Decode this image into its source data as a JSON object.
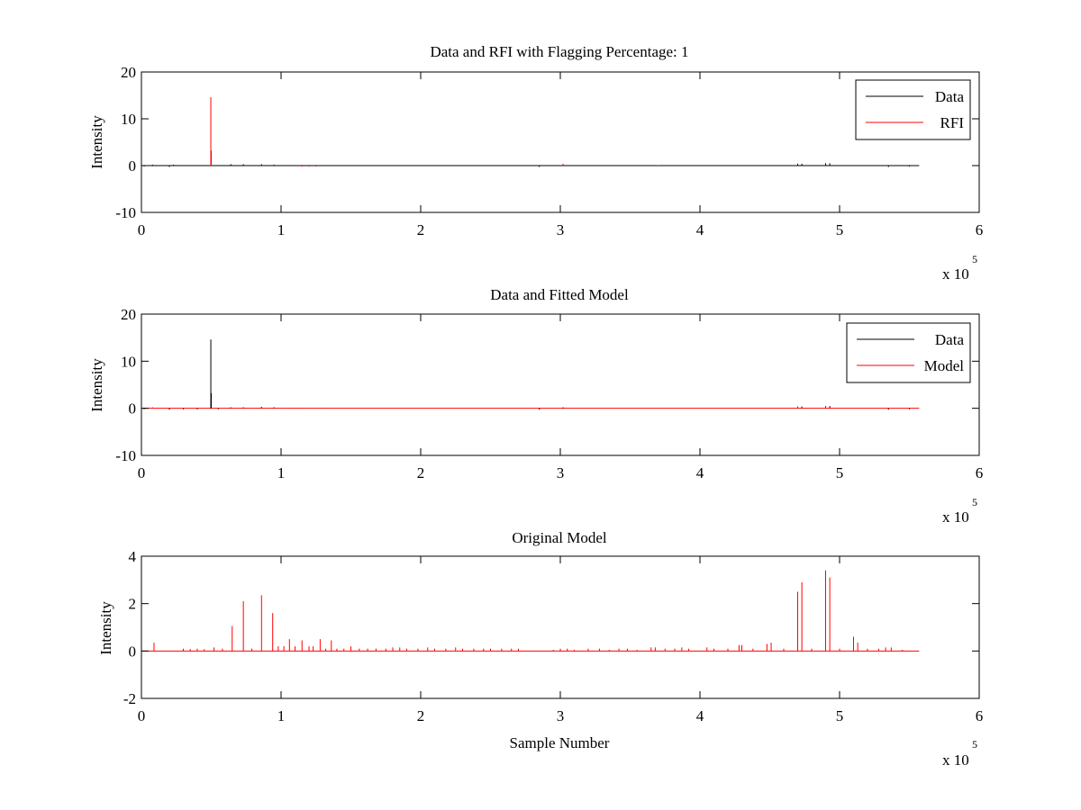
{
  "figure": {
    "background": "#ffffff",
    "axes_color": "#000000"
  },
  "chart_data": [
    {
      "type": "line",
      "title": "Data and RFI with Flagging Percentage: 1",
      "xlabel": "",
      "ylabel": "Intensity",
      "xlim": [
        0,
        6
      ],
      "ylim": [
        -10,
        20
      ],
      "x_exponent": "x 10",
      "x_exponent_power": "5",
      "xticks": [
        "0",
        "1",
        "2",
        "3",
        "4",
        "5",
        "6"
      ],
      "yticks": [
        "-10",
        "0",
        "10",
        "20"
      ],
      "xtick_values": [
        0,
        1,
        2,
        3,
        4,
        5,
        6
      ],
      "ytick_values": [
        -10,
        0,
        10,
        20
      ],
      "grid": false,
      "legend_position": "top-right",
      "legend": [
        {
          "name": "Data",
          "color": "#000000"
        },
        {
          "name": "RFI",
          "color": "#ff0000"
        }
      ],
      "baseline": {
        "x_start": 0,
        "x_end": 5.57,
        "y": 0,
        "color": "#000000"
      },
      "series": [
        {
          "name": "Data",
          "color": "#000000",
          "spikes": [
            {
              "x": 0.02,
              "y": -0.2
            },
            {
              "x": 0.08,
              "y": 0.2
            },
            {
              "x": 0.2,
              "y": -0.3
            },
            {
              "x": 0.23,
              "y": 0.2
            },
            {
              "x": 0.64,
              "y": 0.3
            },
            {
              "x": 0.73,
              "y": 0.3
            },
            {
              "x": 0.86,
              "y": 0.3
            },
            {
              "x": 0.95,
              "y": 0.2
            },
            {
              "x": 2.85,
              "y": -0.3
            },
            {
              "x": 4.7,
              "y": 0.4
            },
            {
              "x": 4.73,
              "y": 0.4
            },
            {
              "x": 4.9,
              "y": 0.5
            },
            {
              "x": 4.93,
              "y": 0.5
            },
            {
              "x": 5.35,
              "y": -0.3
            },
            {
              "x": 5.5,
              "y": -0.2
            }
          ]
        },
        {
          "name": "RFI",
          "color": "#ff0000",
          "spikes": [
            {
              "x": 0.497,
              "y": 14.6
            },
            {
              "x": 0.5,
              "y": 3.2
            },
            {
              "x": 1.15,
              "y": -0.2
            },
            {
              "x": 1.2,
              "y": -0.2
            },
            {
              "x": 1.25,
              "y": -0.2
            },
            {
              "x": 3.02,
              "y": 0.4
            },
            {
              "x": 3.7,
              "y": 0.1
            }
          ]
        }
      ]
    },
    {
      "type": "line",
      "title": "Data and Fitted Model",
      "xlabel": "",
      "ylabel": "Intensity",
      "xlim": [
        0,
        6
      ],
      "ylim": [
        -10,
        20
      ],
      "x_exponent": "x 10",
      "x_exponent_power": "5",
      "xticks": [
        "0",
        "1",
        "2",
        "3",
        "4",
        "5",
        "6"
      ],
      "yticks": [
        "-10",
        "0",
        "10",
        "20"
      ],
      "xtick_values": [
        0,
        1,
        2,
        3,
        4,
        5,
        6
      ],
      "ytick_values": [
        -10,
        0,
        10,
        20
      ],
      "grid": false,
      "legend_position": "top-right",
      "legend": [
        {
          "name": "Data",
          "color": "#000000"
        },
        {
          "name": "Model",
          "color": "#ff0000"
        }
      ],
      "baseline": {
        "x_start": 0,
        "x_end": 5.57,
        "y": 0,
        "color": "#ff0000"
      },
      "series": [
        {
          "name": "Data",
          "color": "#000000",
          "spikes": [
            {
              "x": 0.497,
              "y": 14.6
            },
            {
              "x": 0.5,
              "y": 3.2
            },
            {
              "x": 0.02,
              "y": -0.2
            },
            {
              "x": 0.2,
              "y": -0.3
            },
            {
              "x": 0.3,
              "y": -0.2
            },
            {
              "x": 0.4,
              "y": -0.2
            },
            {
              "x": 0.55,
              "y": -0.2
            },
            {
              "x": 0.64,
              "y": 0.2
            },
            {
              "x": 0.73,
              "y": 0.2
            },
            {
              "x": 0.86,
              "y": 0.3
            },
            {
              "x": 0.95,
              "y": 0.2
            },
            {
              "x": 2.85,
              "y": -0.3
            },
            {
              "x": 3.02,
              "y": 0.2
            },
            {
              "x": 4.7,
              "y": 0.4
            },
            {
              "x": 4.73,
              "y": 0.4
            },
            {
              "x": 4.9,
              "y": 0.5
            },
            {
              "x": 4.93,
              "y": 0.5
            },
            {
              "x": 5.35,
              "y": -0.3
            },
            {
              "x": 5.5,
              "y": -0.2
            }
          ]
        },
        {
          "name": "Model",
          "color": "#ff0000",
          "spikes": [
            {
              "x": 0.08,
              "y": 0.2
            },
            {
              "x": 0.64,
              "y": 0.2
            },
            {
              "x": 0.73,
              "y": 0.2
            },
            {
              "x": 0.86,
              "y": 0.3
            },
            {
              "x": 0.95,
              "y": 0.2
            },
            {
              "x": 1.07,
              "y": 0.1
            },
            {
              "x": 1.15,
              "y": 0.1
            },
            {
              "x": 1.28,
              "y": 0.1
            },
            {
              "x": 4.7,
              "y": 0.4
            },
            {
              "x": 4.73,
              "y": 0.4
            },
            {
              "x": 4.9,
              "y": 0.5
            },
            {
              "x": 4.93,
              "y": 0.5
            }
          ]
        }
      ]
    },
    {
      "type": "line",
      "title": "Original Model",
      "xlabel": "Sample Number",
      "ylabel": "Intensity",
      "xlim": [
        0,
        6
      ],
      "ylim": [
        -2,
        4
      ],
      "x_exponent": "x 10",
      "x_exponent_power": "5",
      "xticks": [
        "0",
        "1",
        "2",
        "3",
        "4",
        "5",
        "6"
      ],
      "yticks": [
        "-2",
        "0",
        "2",
        "4"
      ],
      "xtick_values": [
        0,
        1,
        2,
        3,
        4,
        5,
        6
      ],
      "ytick_values": [
        -2,
        0,
        2,
        4
      ],
      "grid": false,
      "legend_position": "none",
      "legend": [],
      "baseline": {
        "x_start": 0,
        "x_end": 5.57,
        "y": 0,
        "color": "#ff0000"
      },
      "series": [
        {
          "name": "",
          "color": "#ff0000",
          "spikes": [
            {
              "x": 0.09,
              "y": 0.35
            },
            {
              "x": 0.3,
              "y": 0.1
            },
            {
              "x": 0.35,
              "y": 0.08
            },
            {
              "x": 0.4,
              "y": 0.1
            },
            {
              "x": 0.45,
              "y": 0.08
            },
            {
              "x": 0.52,
              "y": 0.15
            },
            {
              "x": 0.58,
              "y": 0.1
            },
            {
              "x": 0.65,
              "y": 1.05
            },
            {
              "x": 0.73,
              "y": 2.1
            },
            {
              "x": 0.79,
              "y": 0.1
            },
            {
              "x": 0.86,
              "y": 2.35
            },
            {
              "x": 0.94,
              "y": 1.6
            },
            {
              "x": 0.98,
              "y": 0.2
            },
            {
              "x": 1.02,
              "y": 0.2
            },
            {
              "x": 1.06,
              "y": 0.5
            },
            {
              "x": 1.1,
              "y": 0.2
            },
            {
              "x": 1.15,
              "y": 0.45
            },
            {
              "x": 1.2,
              "y": 0.2
            },
            {
              "x": 1.23,
              "y": 0.2
            },
            {
              "x": 1.28,
              "y": 0.5
            },
            {
              "x": 1.32,
              "y": 0.1
            },
            {
              "x": 1.36,
              "y": 0.45
            },
            {
              "x": 1.4,
              "y": 0.1
            },
            {
              "x": 1.45,
              "y": 0.1
            },
            {
              "x": 1.5,
              "y": 0.2
            },
            {
              "x": 1.56,
              "y": 0.1
            },
            {
              "x": 1.62,
              "y": 0.1
            },
            {
              "x": 1.68,
              "y": 0.1
            },
            {
              "x": 1.75,
              "y": 0.1
            },
            {
              "x": 1.8,
              "y": 0.15
            },
            {
              "x": 1.85,
              "y": 0.15
            },
            {
              "x": 1.9,
              "y": 0.1
            },
            {
              "x": 1.98,
              "y": 0.1
            },
            {
              "x": 2.05,
              "y": 0.15
            },
            {
              "x": 2.1,
              "y": 0.1
            },
            {
              "x": 2.18,
              "y": 0.1
            },
            {
              "x": 2.25,
              "y": 0.15
            },
            {
              "x": 2.3,
              "y": 0.1
            },
            {
              "x": 2.38,
              "y": 0.1
            },
            {
              "x": 2.45,
              "y": 0.1
            },
            {
              "x": 2.5,
              "y": 0.1
            },
            {
              "x": 2.58,
              "y": 0.1
            },
            {
              "x": 2.65,
              "y": 0.1
            },
            {
              "x": 2.7,
              "y": 0.1
            },
            {
              "x": 2.95,
              "y": 0.05
            },
            {
              "x": 3.0,
              "y": 0.1
            },
            {
              "x": 3.05,
              "y": 0.1
            },
            {
              "x": 3.1,
              "y": 0.05
            },
            {
              "x": 3.2,
              "y": 0.1
            },
            {
              "x": 3.28,
              "y": 0.1
            },
            {
              "x": 3.35,
              "y": 0.05
            },
            {
              "x": 3.42,
              "y": 0.1
            },
            {
              "x": 3.48,
              "y": 0.1
            },
            {
              "x": 3.55,
              "y": 0.05
            },
            {
              "x": 3.65,
              "y": 0.15
            },
            {
              "x": 3.68,
              "y": 0.15
            },
            {
              "x": 3.75,
              "y": 0.1
            },
            {
              "x": 3.82,
              "y": 0.1
            },
            {
              "x": 3.87,
              "y": 0.15
            },
            {
              "x": 3.92,
              "y": 0.1
            },
            {
              "x": 4.05,
              "y": 0.15
            },
            {
              "x": 4.1,
              "y": 0.1
            },
            {
              "x": 4.2,
              "y": 0.1
            },
            {
              "x": 4.28,
              "y": 0.25
            },
            {
              "x": 4.3,
              "y": 0.25
            },
            {
              "x": 4.38,
              "y": 0.1
            },
            {
              "x": 4.48,
              "y": 0.3
            },
            {
              "x": 4.51,
              "y": 0.35
            },
            {
              "x": 4.6,
              "y": 0.1
            },
            {
              "x": 4.7,
              "y": 2.5
            },
            {
              "x": 4.73,
              "y": 2.9
            },
            {
              "x": 4.8,
              "y": 0.1
            },
            {
              "x": 4.9,
              "y": 3.4
            },
            {
              "x": 4.93,
              "y": 3.1
            },
            {
              "x": 5.0,
              "y": 0.1
            },
            {
              "x": 5.1,
              "y": 0.6
            },
            {
              "x": 5.13,
              "y": 0.35
            },
            {
              "x": 5.2,
              "y": 0.1
            },
            {
              "x": 5.28,
              "y": 0.1
            },
            {
              "x": 5.33,
              "y": 0.15
            },
            {
              "x": 5.37,
              "y": 0.15
            },
            {
              "x": 5.45,
              "y": 0.05
            }
          ]
        }
      ]
    }
  ]
}
